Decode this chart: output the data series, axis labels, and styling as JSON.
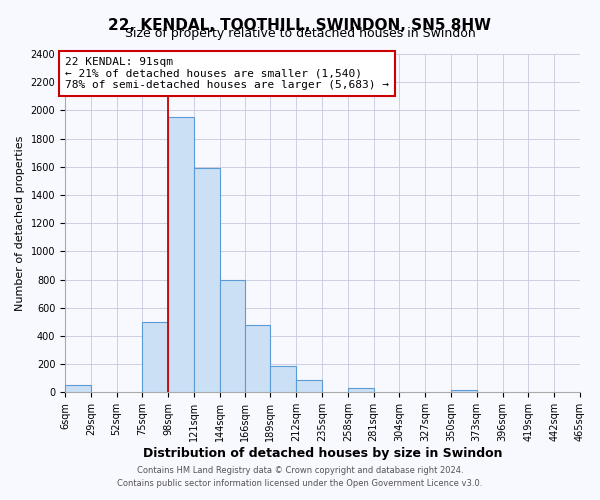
{
  "title": "22, KENDAL, TOOTHILL, SWINDON, SN5 8HW",
  "subtitle": "Size of property relative to detached houses in Swindon",
  "xlabel": "Distribution of detached houses by size in Swindon",
  "ylabel": "Number of detached properties",
  "bin_edges": [
    6,
    29,
    52,
    75,
    98,
    121,
    144,
    166,
    189,
    212,
    235,
    258,
    281,
    304,
    327,
    350,
    373,
    396,
    419,
    442,
    465
  ],
  "bin_values": [
    50,
    0,
    0,
    500,
    1950,
    1590,
    800,
    480,
    185,
    90,
    0,
    30,
    0,
    0,
    0,
    20,
    0,
    0,
    0,
    0
  ],
  "bar_color": "#cce0f5",
  "bar_edge_color": "#5b9bd5",
  "property_line_x": 98,
  "annotation_title": "22 KENDAL: 91sqm",
  "annotation_line1": "← 21% of detached houses are smaller (1,540)",
  "annotation_line2": "78% of semi-detached houses are larger (5,683) →",
  "annotation_box_color": "#ffffff",
  "annotation_box_edge_color": "#cc0000",
  "vline_color": "#cc0000",
  "tick_labels": [
    "6sqm",
    "29sqm",
    "52sqm",
    "75sqm",
    "98sqm",
    "121sqm",
    "144sqm",
    "166sqm",
    "189sqm",
    "212sqm",
    "235sqm",
    "258sqm",
    "281sqm",
    "304sqm",
    "327sqm",
    "350sqm",
    "373sqm",
    "396sqm",
    "419sqm",
    "442sqm",
    "465sqm"
  ],
  "ylim": [
    0,
    2400
  ],
  "yticks": [
    0,
    200,
    400,
    600,
    800,
    1000,
    1200,
    1400,
    1600,
    1800,
    2000,
    2200,
    2400
  ],
  "footer1": "Contains HM Land Registry data © Crown copyright and database right 2024.",
  "footer2": "Contains public sector information licensed under the Open Government Licence v3.0.",
  "bg_color": "#f8f8ff",
  "grid_color": "#c8c8dc",
  "title_fontsize": 11,
  "subtitle_fontsize": 9,
  "xlabel_fontsize": 9,
  "ylabel_fontsize": 8,
  "tick_fontsize": 7,
  "annot_fontsize": 8,
  "footer_fontsize": 6
}
